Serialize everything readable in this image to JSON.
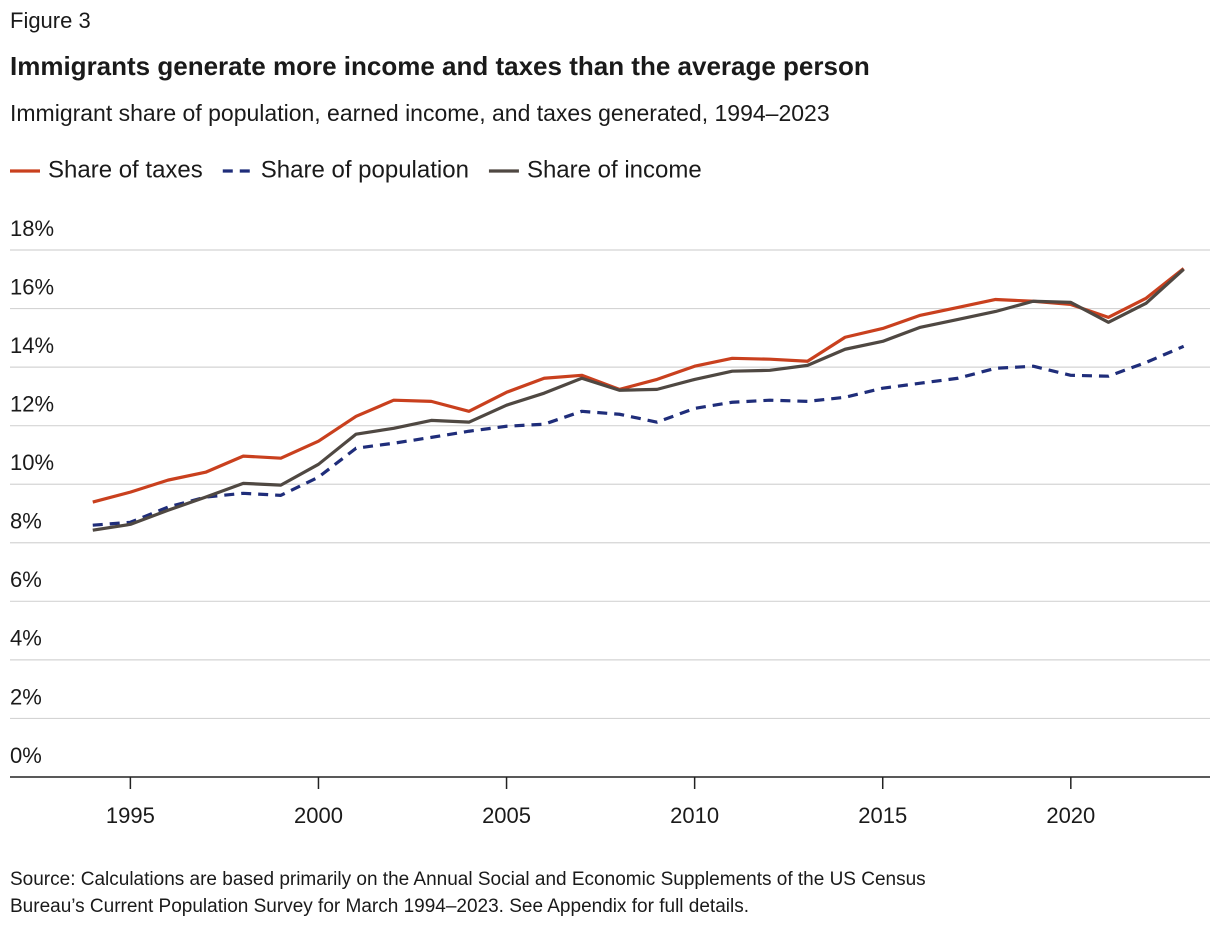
{
  "figure_label": "Figure 3",
  "chart_data": {
    "type": "line",
    "title": "Immigrants generate more income and taxes than the average person",
    "subtitle": "Immigrant share of population, earned income, and taxes generated, 1994–2023",
    "x": [
      1994,
      1995,
      1996,
      1997,
      1998,
      1999,
      2000,
      2001,
      2002,
      2003,
      2004,
      2005,
      2006,
      2007,
      2008,
      2009,
      2010,
      2011,
      2012,
      2013,
      2014,
      2015,
      2016,
      2017,
      2018,
      2019,
      2020,
      2021,
      2022,
      2023
    ],
    "series": [
      {
        "name": "Share of taxes",
        "color": "#c9401e",
        "line_style": "solid",
        "values": [
          9.39,
          9.73,
          10.14,
          10.41,
          10.96,
          10.89,
          11.47,
          12.32,
          12.87,
          12.83,
          12.49,
          13.14,
          13.62,
          13.72,
          13.24,
          13.58,
          14.03,
          14.3,
          14.27,
          14.2,
          15.02,
          15.32,
          15.77,
          16.04,
          16.31,
          16.25,
          16.14,
          15.7,
          16.35,
          17.37
        ]
      },
      {
        "name": "Share of population",
        "color": "#1f2d7a",
        "line_style": "dashed",
        "values": [
          8.6,
          8.7,
          9.22,
          9.56,
          9.69,
          9.62,
          10.24,
          11.23,
          11.4,
          11.6,
          11.81,
          11.98,
          12.05,
          12.49,
          12.39,
          12.12,
          12.59,
          12.8,
          12.87,
          12.83,
          12.97,
          13.28,
          13.45,
          13.62,
          13.96,
          14.03,
          13.72,
          13.69,
          14.16,
          14.71
        ]
      },
      {
        "name": "Share of income",
        "color": "#4f4842",
        "line_style": "solid",
        "values": [
          8.43,
          8.63,
          9.11,
          9.56,
          10.03,
          9.97,
          10.68,
          11.71,
          11.91,
          12.18,
          12.12,
          12.7,
          13.11,
          13.62,
          13.21,
          13.24,
          13.58,
          13.86,
          13.89,
          14.06,
          14.61,
          14.88,
          15.36,
          15.63,
          15.9,
          16.25,
          16.21,
          15.53,
          16.18,
          17.34
        ]
      }
    ],
    "xlim": [
      1991.8,
      2023.7
    ],
    "xticks": [
      1995,
      2000,
      2005,
      2010,
      2015,
      2020
    ],
    "ylim": [
      0,
      18
    ],
    "yticks": [
      {
        "value": 0,
        "label": "0%"
      },
      {
        "value": 2,
        "label": "2%"
      },
      {
        "value": 4,
        "label": "4%"
      },
      {
        "value": 6,
        "label": "6%"
      },
      {
        "value": 8,
        "label": "8%"
      },
      {
        "value": 10,
        "label": "10%"
      },
      {
        "value": 12,
        "label": "12%"
      },
      {
        "value": 14,
        "label": "14%"
      },
      {
        "value": 16,
        "label": "16%"
      },
      {
        "value": 18,
        "label": "18%"
      }
    ],
    "grid": true,
    "source": [
      "Source: Calculations are based primarily on the Annual Social and Economic Supplements of the US Census",
      "Bureau’s Current Population Survey for March 1994–2023. See Appendix for full details."
    ]
  }
}
